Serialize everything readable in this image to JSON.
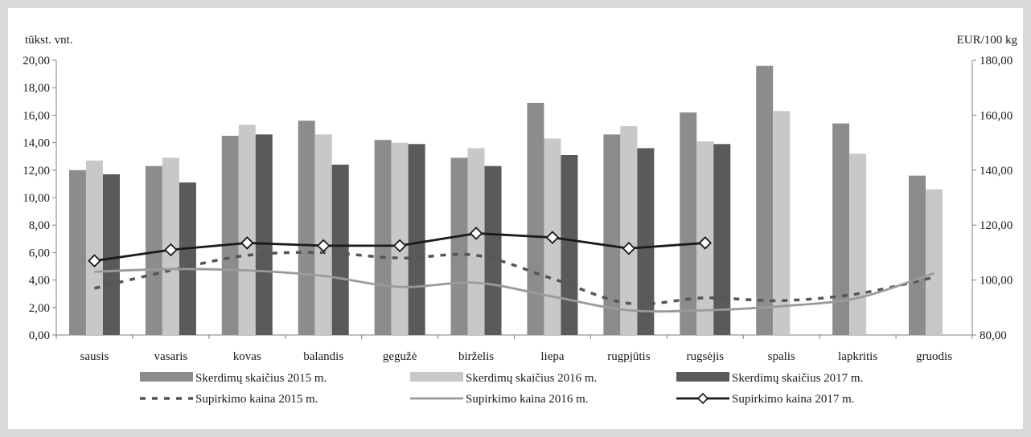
{
  "chart_data": {
    "type": "bar+line",
    "y_left_label": "tūkst. vnt.",
    "y_right_label": "EUR/100 kg",
    "y_left_ticks": [
      "0,00",
      "2,00",
      "4,00",
      "6,00",
      "8,00",
      "10,00",
      "12,00",
      "14,00",
      "16,00",
      "18,00",
      "20,00"
    ],
    "y_right_ticks": [
      "80,00",
      "100,00",
      "120,00",
      "140,00",
      "160,00",
      "180,00"
    ],
    "ylim_left": [
      0,
      20
    ],
    "ylim_right": [
      80,
      180
    ],
    "categories": [
      "sausis",
      "vasaris",
      "kovas",
      "balandis",
      "gegužė",
      "birželis",
      "liepa",
      "rugpjūtis",
      "rugsėjis",
      "spalis",
      "lapkritis",
      "gruodis"
    ],
    "bar_series": [
      {
        "name": "Skerdimų skaičius 2015 m.",
        "color": "#8c8c8c",
        "values": [
          12.0,
          12.3,
          14.5,
          15.6,
          14.2,
          12.9,
          16.9,
          14.6,
          16.2,
          19.6,
          15.4,
          11.6
        ]
      },
      {
        "name": "Skerdimų skaičius 2016 m.",
        "color": "#c8c8c8",
        "values": [
          12.7,
          12.9,
          15.3,
          14.6,
          14.0,
          13.6,
          14.3,
          15.2,
          14.1,
          16.3,
          13.2,
          10.6
        ]
      },
      {
        "name": "Skerdimų skaičius 2017 m.",
        "color": "#5a5a5a",
        "values": [
          11.7,
          11.1,
          14.6,
          12.4,
          13.9,
          12.3,
          13.1,
          13.6,
          13.9,
          null,
          null,
          null
        ]
      }
    ],
    "line_series": [
      {
        "name": "Supirkimo kaina 2015 m.",
        "color": "#555555",
        "style": "dashed",
        "values": [
          97.0,
          103.5,
          109.0,
          110.0,
          108.0,
          109.0,
          100.5,
          91.5,
          93.5,
          92.5,
          95.0,
          101.0
        ]
      },
      {
        "name": "Supirkimo kaina 2016 m.",
        "color": "#9a9a9a",
        "style": "solid",
        "values": [
          103.0,
          104.0,
          103.5,
          101.5,
          97.5,
          99.0,
          94.0,
          89.0,
          89.0,
          90.5,
          93.5,
          102.5
        ]
      },
      {
        "name": "Supirkimo kaina 2017 m.",
        "color": "#1a1a1a",
        "style": "solid-diamond",
        "values": [
          107.0,
          111.0,
          113.5,
          112.5,
          112.5,
          117.0,
          115.5,
          111.5,
          113.5,
          null,
          null,
          null
        ]
      }
    ]
  }
}
